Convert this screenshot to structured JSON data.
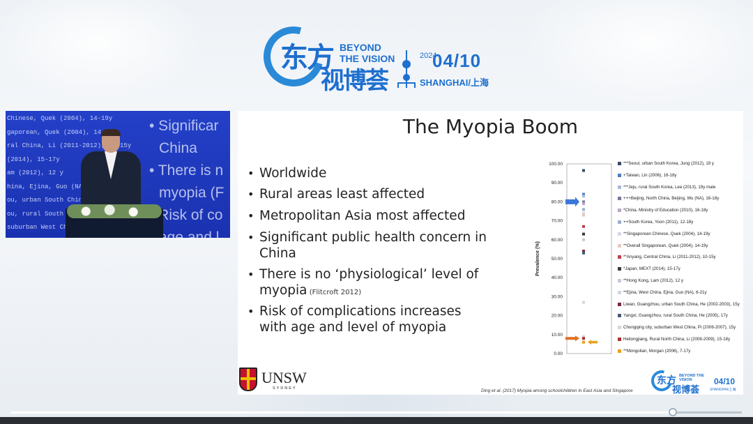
{
  "event_logo": {
    "cn_line1": "东方",
    "cn_line2": "视博荟",
    "en_line1": "BEYOND",
    "en_line2": "THE VISION",
    "year": "2024",
    "date": "04/10",
    "city": "SHANGHAI/上海"
  },
  "camera_feed": {
    "screen_lines": [
      "Chinese, Quek (2004), 14-19y",
      "gaporean, Quek (2004), 14-19y",
      "ral China, Li (2011-2012), 10-15y",
      "(2014), 15-17y",
      "am (2012), 12 y",
      "hina, Ejina, Guo (NA), 6-21y",
      "ou, urban South China, He (",
      "ou, rural South China, He (",
      "suburban West China, Pi ("
    ],
    "screen_bullets": [
      "• Significar",
      "China",
      "• There is n",
      "myopia (F",
      "• Risk of co",
      "age and l"
    ]
  },
  "slide": {
    "title": "The Myopia Boom",
    "bullets": [
      {
        "text": "Worldwide"
      },
      {
        "text": "Rural areas least affected"
      },
      {
        "text": "Metropolitan Asia most affected"
      },
      {
        "text": "Significant public health concern in China"
      },
      {
        "text": "There is no ‘physiological’ level of myopia",
        "cite": "(Flitcroft 2012)"
      },
      {
        "text": "Risk of complications increases with age and level of myopia"
      }
    ],
    "university": "UNSW",
    "university_sub": "SYDNEY",
    "reference": "Ding et al. (2017) Myopia among schoolchildren in East Asia and Singapore"
  },
  "chart_data": {
    "type": "scatter",
    "ylabel": "Prevalence (%)",
    "ylim": [
      0,
      100
    ],
    "yticks": [
      "0.00",
      "10.00",
      "20.00",
      "30.00",
      "40.00",
      "50.00",
      "60.00",
      "70.00",
      "80.00",
      "90.00",
      "100.00"
    ],
    "series": [
      {
        "name": "***Seoul, urban South Korea,  Jung (2012), 19 y",
        "y": 96.5,
        "color": "#3b4b6b",
        "marker": "diamond"
      },
      {
        "name": "+Taiwan, Lin (2006), 16-18y",
        "y": 84.0,
        "color": "#4a7fc0",
        "marker": "square"
      },
      {
        "name": "***Jeju, rural South Korea, Lee (2013), 19y male",
        "y": 83.0,
        "color": "#a8b8d8",
        "marker": "triangle"
      },
      {
        "name": "+++Beijing, North China, Beijing, Wu (NA), 16-18y",
        "y": 80.0,
        "color": "#7a7a9a",
        "marker": "x"
      },
      {
        "name": "*China, Ministry of Education (2010), 16-18y",
        "y": 79.0,
        "color": "#b8a8c8",
        "marker": "star"
      },
      {
        "name": "++South Korea, Yoon (2011), 12-18y",
        "y": 76.0,
        "color": "#9ab0d0",
        "marker": "circle"
      },
      {
        "name": "**Singaporean Chinese, Quek (2004), 14-19y",
        "y": 74.0,
        "color": "#d8d8e8",
        "marker": "plus"
      },
      {
        "name": "**Overall Singaporean, Quek (2004), 14-19y",
        "y": 73.0,
        "color": "#e8c8c0",
        "marker": "dash"
      },
      {
        "name": "**Anyang, Central China, Li (2011-2012), 10-15y",
        "y": 67.0,
        "color": "#c0404a",
        "marker": "square"
      },
      {
        "name": "*Japan, MEXT (2014), 15-17y",
        "y": 63.0,
        "color": "#3a3a3a",
        "marker": "circle"
      },
      {
        "name": "**Hong Kong, Lam (2012), 12 y",
        "y": 60.0,
        "color": "#c8c8d8",
        "marker": "dash"
      },
      {
        "name": "**Ejina, West China, Ejina, Guo (NA), 6-21y",
        "y": 27.0,
        "color": "#d0d8e0",
        "marker": "square"
      },
      {
        "name": "Liwan, Guangzhou, urban South China, He (2002-2003), 15y",
        "y": 54.0,
        "color": "#7a2a3a",
        "marker": "triangle"
      },
      {
        "name": "Yangxi, Guangzhou, rural South China, He (2005), 17y",
        "y": 53.0,
        "color": "#4a5a7a",
        "marker": "square"
      },
      {
        "name": "Chongqing city, suburban West China, Pi (2006-2007), 15y",
        "y": 9.0,
        "color": "#d8d8d8",
        "marker": "dash"
      },
      {
        "name": "Heilongjiang, Rural North China, Li (2008-2009), 15-18y",
        "y": 8.0,
        "color": "#b03030",
        "marker": "square"
      },
      {
        "name": "**Mongolian, Morgan (2006), 7-17y",
        "y": 6.0,
        "color": "#e8a020",
        "marker": "square"
      }
    ],
    "arrows": [
      {
        "y": 80.0,
        "color": "#3b78d8",
        "direction": "right"
      },
      {
        "y": 8.0,
        "color": "#e07020",
        "direction": "right"
      },
      {
        "y": 6.0,
        "color": "#e8a020",
        "direction": "left"
      }
    ]
  },
  "mini_logo": {
    "cn_line1": "东方",
    "cn_line2": "视博荟",
    "en": "BEYOND THE VISION",
    "date": "04/10",
    "city": "SHANGHAI/上海"
  },
  "player": {
    "progress_fraction": 0.906
  },
  "colors": {
    "brand_blue": "#1e6fcf",
    "feed_blue": "#2440c8",
    "slide_bg": "#ffffff"
  }
}
